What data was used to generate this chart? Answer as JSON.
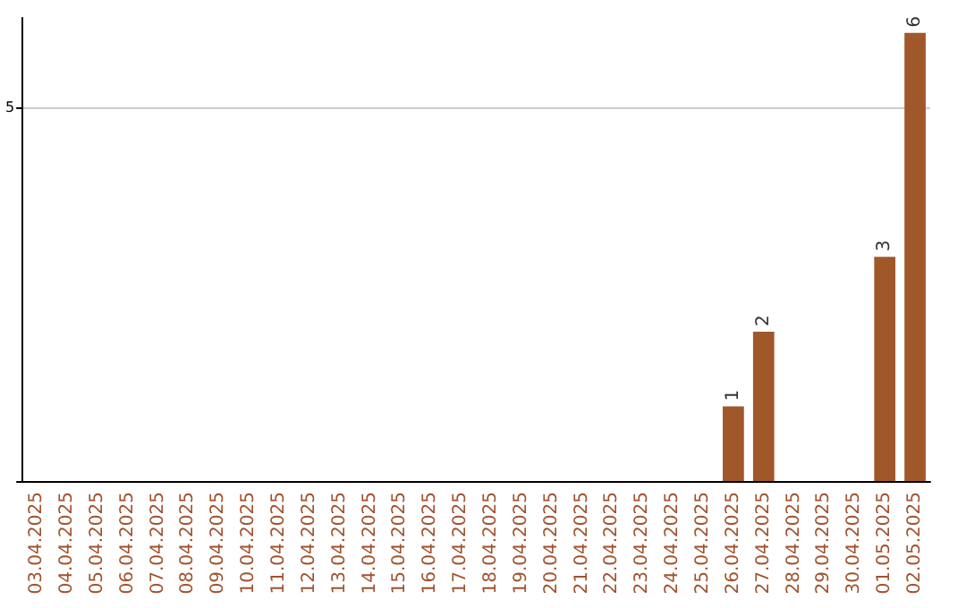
{
  "chart_data": {
    "type": "bar",
    "categories": [
      "03.04.2025",
      "04.04.2025",
      "05.04.2025",
      "06.04.2025",
      "07.04.2025",
      "08.04.2025",
      "09.04.2025",
      "10.04.2025",
      "11.04.2025",
      "12.04.2025",
      "13.04.2025",
      "14.04.2025",
      "15.04.2025",
      "16.04.2025",
      "17.04.2025",
      "18.04.2025",
      "19.04.2025",
      "20.04.2025",
      "21.04.2025",
      "22.04.2025",
      "23.04.2025",
      "24.04.2025",
      "25.04.2025",
      "26.04.2025",
      "27.04.2025",
      "28.04.2025",
      "29.04.2025",
      "30.04.2025",
      "01.05.2025",
      "02.05.2025"
    ],
    "values": [
      null,
      null,
      null,
      null,
      null,
      null,
      null,
      null,
      null,
      null,
      null,
      null,
      null,
      null,
      null,
      null,
      null,
      null,
      null,
      null,
      null,
      null,
      null,
      1,
      2,
      null,
      null,
      null,
      3,
      6
    ],
    "data_labels": true,
    "color": "#a0572a",
    "ylim": [
      0,
      6.2
    ],
    "yticks": [
      {
        "value": 0,
        "label": null
      },
      5
    ],
    "grid": "y"
  }
}
